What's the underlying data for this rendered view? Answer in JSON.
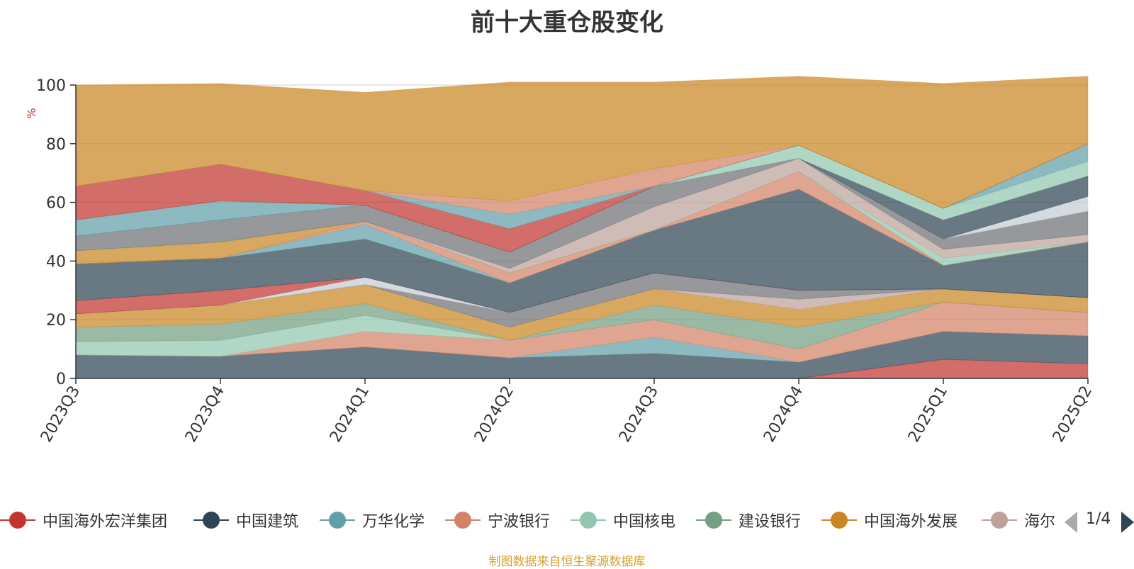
{
  "chart_data": {
    "type": "area",
    "title": "前十大重仓股变化",
    "ylabel": "%",
    "ylim": [
      0,
      100
    ],
    "y_ticks": [
      "0",
      "20",
      "40",
      "60",
      "80",
      "100"
    ],
    "x": [
      "2023Q3",
      "2023Q4",
      "2024Q1",
      "2024Q2",
      "2024Q3",
      "2024Q4",
      "2025Q1",
      "2025Q2"
    ],
    "grid": true,
    "stacked": true,
    "series": [
      {
        "color": "#c23531",
        "values": [
          0,
          0,
          0,
          0,
          0,
          0,
          6.5,
          5
        ]
      },
      {
        "color": "#2f4554",
        "values": [
          8,
          7.5,
          10.7,
          7,
          8.5,
          5.5,
          9.5,
          9.5
        ]
      },
      {
        "color": "#61a0a8",
        "values": [
          0,
          0,
          0,
          0,
          5.5,
          0,
          0,
          0
        ]
      },
      {
        "color": "#d48265",
        "values": [
          0,
          0,
          5.3,
          6,
          6,
          4.5,
          10,
          8
        ]
      },
      {
        "color": "#91c7ae",
        "values": [
          4.5,
          5.5,
          5.5,
          0,
          0,
          0,
          0,
          0
        ]
      },
      {
        "color": "#749f83",
        "values": [
          5,
          5.5,
          4,
          0,
          5,
          7.5,
          0,
          0
        ]
      },
      {
        "color": "#ca8622",
        "values": [
          4.5,
          6.5,
          6.5,
          4.5,
          5.5,
          6,
          4.5,
          5
        ]
      },
      {
        "color": "#bda29a",
        "values": [
          0,
          0,
          0,
          0,
          0,
          3.5,
          0,
          0
        ]
      },
      {
        "color": "#6e7074",
        "values": [
          0,
          0,
          0,
          5,
          5.5,
          3,
          0,
          0
        ]
      },
      {
        "color": "#c4ccd3",
        "values": [
          0,
          0,
          2.5,
          0,
          0,
          0,
          0,
          0
        ]
      },
      {
        "color": "#c23531",
        "values": [
          4.5,
          5,
          0,
          0,
          0,
          0,
          0,
          0
        ]
      },
      {
        "color": "#2f4554",
        "values": [
          12.5,
          11,
          13,
          10,
          14.5,
          34.5,
          8,
          19
        ]
      },
      {
        "color": "#61a0a8",
        "values": [
          0,
          0,
          5,
          0,
          0,
          0,
          0,
          0
        ]
      },
      {
        "color": "#d48265",
        "values": [
          0,
          0,
          1,
          3.5,
          0,
          6,
          0,
          0
        ]
      },
      {
        "color": "#ca8622",
        "values": [
          4.5,
          5.5,
          0,
          0,
          0,
          0,
          0,
          0
        ]
      },
      {
        "color": "#91c7ae",
        "values": [
          0,
          0,
          0,
          0,
          0,
          0,
          2.5,
          0
        ]
      },
      {
        "color": "#bda29a",
        "values": [
          0,
          0,
          0,
          1.5,
          8,
          4.5,
          3,
          2.5
        ]
      },
      {
        "color": "#6e7074",
        "values": [
          5,
          7.5,
          5.5,
          5.5,
          7,
          0,
          3.5,
          8
        ]
      },
      {
        "color": "#c4ccd3",
        "values": [
          0,
          0,
          0,
          0,
          0,
          0,
          0,
          5
        ]
      },
      {
        "color": "#2f4554",
        "values": [
          0,
          0,
          0,
          0,
          0,
          0,
          6.5,
          7
        ]
      },
      {
        "color": "#91c7ae",
        "values": [
          0,
          0,
          0,
          0,
          0,
          4.5,
          4,
          5
        ]
      },
      {
        "color": "#61a0a8",
        "values": [
          5.5,
          6.5,
          0,
          0,
          0,
          0,
          0,
          6
        ]
      },
      {
        "color": "#c23531",
        "values": [
          11.5,
          12.5,
          5,
          8,
          0,
          0,
          0,
          0
        ]
      },
      {
        "color": "#61a0a8",
        "values": [
          0,
          0,
          0,
          5,
          0,
          0,
          0,
          0
        ]
      },
      {
        "color": "#d48265",
        "values": [
          0,
          0,
          0,
          4.5,
          6,
          0,
          0,
          0
        ]
      },
      {
        "color": "#ca8622",
        "values": [
          34.5,
          27.5,
          33.5,
          40.5,
          29.5,
          23.5,
          42.5,
          23
        ]
      }
    ],
    "legend": [
      {
        "name": "中国海外宏洋集团",
        "color": "#c23531"
      },
      {
        "name": "中国建筑",
        "color": "#2f4554"
      },
      {
        "name": "万华化学",
        "color": "#61a0a8"
      },
      {
        "name": "宁波银行",
        "color": "#d48265"
      },
      {
        "name": "中国核电",
        "color": "#91c7ae"
      },
      {
        "name": "建设银行",
        "color": "#749f83"
      },
      {
        "name": "中国海外发展",
        "color": "#ca8622"
      },
      {
        "name": "海尔",
        "color": "#bda29a"
      }
    ]
  },
  "legend_pager": "1/4",
  "source_note": "制图数据来自恒生聚源数据库"
}
